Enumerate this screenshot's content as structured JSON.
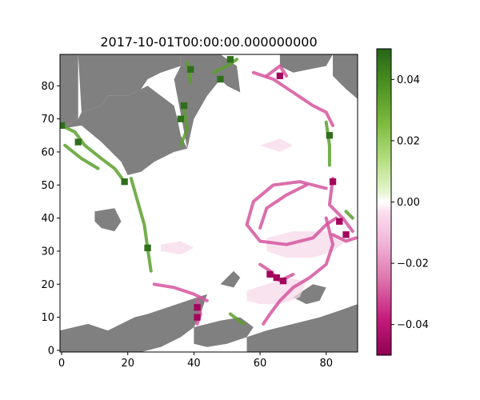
{
  "chart_data": {
    "type": "heatmap",
    "title": "2017-10-01T00:00:00.000000000",
    "xlabel": "",
    "ylabel": "",
    "xlim": [
      -0.5,
      89.5
    ],
    "ylim": [
      -0.5,
      89.5
    ],
    "x_ticks": [
      0,
      20,
      40,
      60,
      80
    ],
    "y_ticks": [
      0,
      10,
      20,
      30,
      40,
      50,
      60,
      70,
      80
    ],
    "x_tick_labels": [
      "0",
      "20",
      "40",
      "60",
      "80"
    ],
    "y_tick_labels": [
      "0",
      "10",
      "20",
      "30",
      "40",
      "50",
      "60",
      "70",
      "80"
    ],
    "colormap": "PiYG",
    "vmin": -0.05,
    "vmax": 0.05,
    "colorbar": {
      "ticks": [
        0.04,
        0.02,
        0.0,
        -0.02,
        -0.04
      ],
      "tick_labels": [
        "0.04",
        "0.02",
        "0.00",
        "−0.02",
        "−0.04"
      ]
    },
    "land_color": "#808080",
    "ocean_color": "#ffffff",
    "land": [
      [
        [
          -0.5,
          89.5
        ],
        [
          5,
          89.5
        ],
        [
          5,
          70
        ],
        [
          -0.5,
          67
        ]
      ],
      [
        [
          5,
          89.5
        ],
        [
          36,
          89.5
        ],
        [
          36,
          86
        ],
        [
          30,
          84
        ],
        [
          26,
          82
        ],
        [
          24,
          79
        ],
        [
          20,
          77
        ],
        [
          14,
          77
        ],
        [
          12,
          74
        ],
        [
          6,
          72
        ]
      ],
      [
        [
          -0.5,
          67
        ],
        [
          6,
          68
        ],
        [
          12,
          63
        ],
        [
          18,
          57
        ],
        [
          20,
          53
        ],
        [
          24,
          54
        ],
        [
          28,
          57
        ],
        [
          34,
          60
        ],
        [
          38,
          61
        ],
        [
          36,
          65
        ],
        [
          35,
          70
        ],
        [
          34,
          74
        ],
        [
          30,
          77
        ],
        [
          26,
          80
        ],
        [
          20,
          77
        ],
        [
          14,
          77
        ],
        [
          12,
          74
        ],
        [
          6,
          72
        ],
        [
          5,
          70
        ]
      ],
      [
        [
          38,
          61
        ],
        [
          40,
          70
        ],
        [
          44,
          77
        ],
        [
          48,
          82
        ],
        [
          50,
          80
        ],
        [
          54,
          78
        ],
        [
          53,
          86
        ],
        [
          48,
          89.5
        ],
        [
          36,
          89.5
        ],
        [
          36,
          86
        ],
        [
          34,
          82
        ]
      ],
      [
        [
          66,
          89.5
        ],
        [
          82,
          89.5
        ],
        [
          80,
          86
        ],
        [
          70,
          84
        ],
        [
          66,
          86
        ]
      ],
      [
        [
          82,
          89.5
        ],
        [
          89.5,
          89.5
        ],
        [
          89.5,
          76
        ],
        [
          86,
          79
        ],
        [
          82,
          83
        ]
      ],
      [
        [
          10,
          42
        ],
        [
          16,
          43
        ],
        [
          18,
          39
        ],
        [
          16,
          36
        ],
        [
          12,
          37
        ],
        [
          10,
          39
        ]
      ],
      [
        [
          -0.5,
          6
        ],
        [
          8,
          8
        ],
        [
          14,
          6
        ],
        [
          18,
          8
        ],
        [
          22,
          10
        ],
        [
          26,
          11
        ],
        [
          32,
          13
        ],
        [
          38,
          15
        ],
        [
          44,
          17
        ],
        [
          42,
          11
        ],
        [
          40,
          7
        ],
        [
          36,
          4
        ],
        [
          30,
          1
        ],
        [
          24,
          -0.5
        ],
        [
          -0.5,
          -0.5
        ]
      ],
      [
        [
          40,
          7
        ],
        [
          48,
          9
        ],
        [
          54,
          10
        ],
        [
          58,
          7
        ],
        [
          56,
          4
        ],
        [
          50,
          2
        ],
        [
          44,
          1
        ],
        [
          40,
          2
        ]
      ],
      [
        [
          56,
          4
        ],
        [
          62,
          6
        ],
        [
          70,
          8
        ],
        [
          78,
          10
        ],
        [
          84,
          12
        ],
        [
          89.5,
          14
        ],
        [
          89.5,
          -0.5
        ],
        [
          56,
          -0.5
        ]
      ],
      [
        [
          48,
          20
        ],
        [
          52,
          24
        ],
        [
          54,
          22
        ],
        [
          52,
          19
        ]
      ],
      [
        [
          70,
          16
        ],
        [
          76,
          20
        ],
        [
          80,
          19
        ],
        [
          78,
          15
        ],
        [
          74,
          14
        ]
      ]
    ],
    "positive_lines": [
      [
        [
          0,
          68
        ],
        [
          4,
          66
        ],
        [
          7,
          62
        ],
        [
          12,
          58
        ],
        [
          16,
          55
        ],
        [
          19,
          51
        ]
      ],
      [
        [
          1,
          62
        ],
        [
          6,
          58
        ],
        [
          11,
          55
        ]
      ],
      [
        [
          21,
          52
        ],
        [
          23,
          45
        ],
        [
          25,
          38
        ],
        [
          26,
          31
        ],
        [
          27,
          24
        ]
      ],
      [
        [
          36,
          62
        ],
        [
          38,
          67
        ],
        [
          37,
          73
        ]
      ],
      [
        [
          39,
          81
        ],
        [
          38,
          87
        ]
      ],
      [
        [
          46,
          84
        ],
        [
          50,
          86
        ],
        [
          53,
          88
        ]
      ],
      [
        [
          80,
          69
        ],
        [
          81,
          62
        ],
        [
          81,
          56
        ]
      ],
      [
        [
          51,
          11
        ],
        [
          55,
          8
        ]
      ],
      [
        [
          86,
          42
        ],
        [
          88,
          40
        ]
      ]
    ],
    "negative_lines": [
      [
        [
          58,
          84
        ],
        [
          64,
          82
        ],
        [
          70,
          78
        ],
        [
          76,
          74
        ],
        [
          80,
          72
        ],
        [
          82,
          68
        ]
      ],
      [
        [
          62,
          83
        ],
        [
          66,
          86
        ],
        [
          68,
          83
        ]
      ],
      [
        [
          82,
          52
        ],
        [
          81,
          44
        ],
        [
          85,
          40
        ],
        [
          88,
          36
        ]
      ],
      [
        [
          80,
          49
        ],
        [
          72,
          51
        ],
        [
          64,
          50
        ],
        [
          58,
          45
        ],
        [
          56,
          38
        ],
        [
          60,
          33
        ],
        [
          68,
          32
        ],
        [
          76,
          34
        ],
        [
          80,
          38
        ],
        [
          83,
          40
        ]
      ],
      [
        [
          74,
          50
        ],
        [
          68,
          47
        ],
        [
          62,
          43
        ],
        [
          60,
          37
        ]
      ],
      [
        [
          80,
          40
        ],
        [
          82,
          32
        ],
        [
          80,
          26
        ],
        [
          75,
          22
        ],
        [
          70,
          19
        ],
        [
          66,
          15
        ],
        [
          63,
          11
        ],
        [
          61,
          8
        ]
      ],
      [
        [
          70,
          23
        ],
        [
          66,
          21
        ],
        [
          63,
          24
        ],
        [
          60,
          26
        ]
      ],
      [
        [
          28,
          20
        ],
        [
          34,
          19
        ],
        [
          40,
          17
        ],
        [
          44,
          15
        ]
      ],
      [
        [
          41,
          15
        ],
        [
          42,
          11
        ],
        [
          41,
          8
        ]
      ],
      [
        [
          82,
          35
        ],
        [
          86,
          33
        ],
        [
          89,
          34
        ]
      ]
    ],
    "negative_patches": [
      [
        [
          56,
          18
        ],
        [
          62,
          20
        ],
        [
          68,
          22
        ],
        [
          74,
          21
        ],
        [
          72,
          16
        ],
        [
          66,
          14
        ],
        [
          60,
          14
        ],
        [
          56,
          15
        ]
      ],
      [
        [
          62,
          34
        ],
        [
          70,
          36
        ],
        [
          80,
          36
        ],
        [
          86,
          33
        ],
        [
          82,
          30
        ],
        [
          76,
          28
        ],
        [
          68,
          28
        ],
        [
          62,
          30
        ]
      ],
      [
        [
          30,
          32
        ],
        [
          36,
          33
        ],
        [
          40,
          31
        ],
        [
          36,
          29
        ],
        [
          30,
          30
        ]
      ],
      [
        [
          60,
          62
        ],
        [
          66,
          60
        ],
        [
          70,
          62
        ],
        [
          66,
          64
        ]
      ]
    ],
    "strong_negative_spots": [
      [
        63,
        23
      ],
      [
        65,
        22
      ],
      [
        67,
        21
      ],
      [
        41,
        13
      ],
      [
        41,
        10
      ],
      [
        86,
        35
      ],
      [
        84,
        39
      ],
      [
        66,
        83
      ],
      [
        82,
        51
      ]
    ],
    "strong_positive_spots": [
      [
        39,
        85
      ],
      [
        37,
        74
      ],
      [
        36,
        70
      ],
      [
        48,
        82
      ],
      [
        51,
        88
      ],
      [
        0,
        68
      ],
      [
        5,
        63
      ],
      [
        19,
        51
      ],
      [
        26,
        31
      ],
      [
        81,
        65
      ]
    ]
  }
}
